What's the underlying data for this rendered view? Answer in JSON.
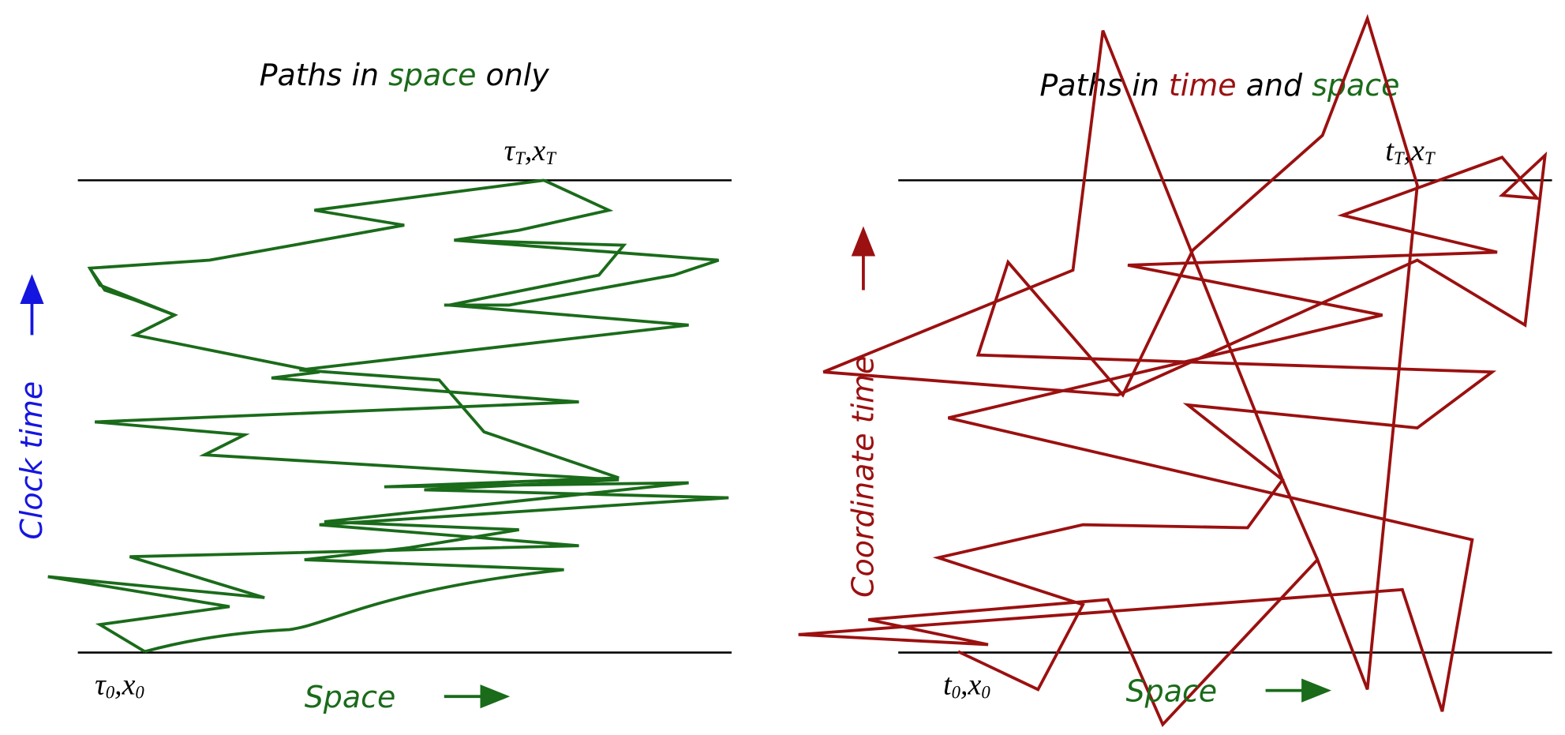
{
  "left": {
    "title": [
      "Paths in ",
      "space",
      " only"
    ],
    "end_label": [
      "τ",
      "T",
      ",x",
      "T"
    ],
    "start_label": [
      "τ",
      "0",
      ",x",
      "0"
    ],
    "x_label": "Space",
    "y_label": "Clock time"
  },
  "right": {
    "title": [
      "Paths in ",
      "time",
      " and ",
      "space"
    ],
    "end_label": [
      "t",
      "T",
      ",x",
      "T"
    ],
    "start_label": [
      "t",
      "0",
      ",x",
      "0"
    ],
    "x_label": "Space",
    "y_label": "Coordinate time"
  }
}
